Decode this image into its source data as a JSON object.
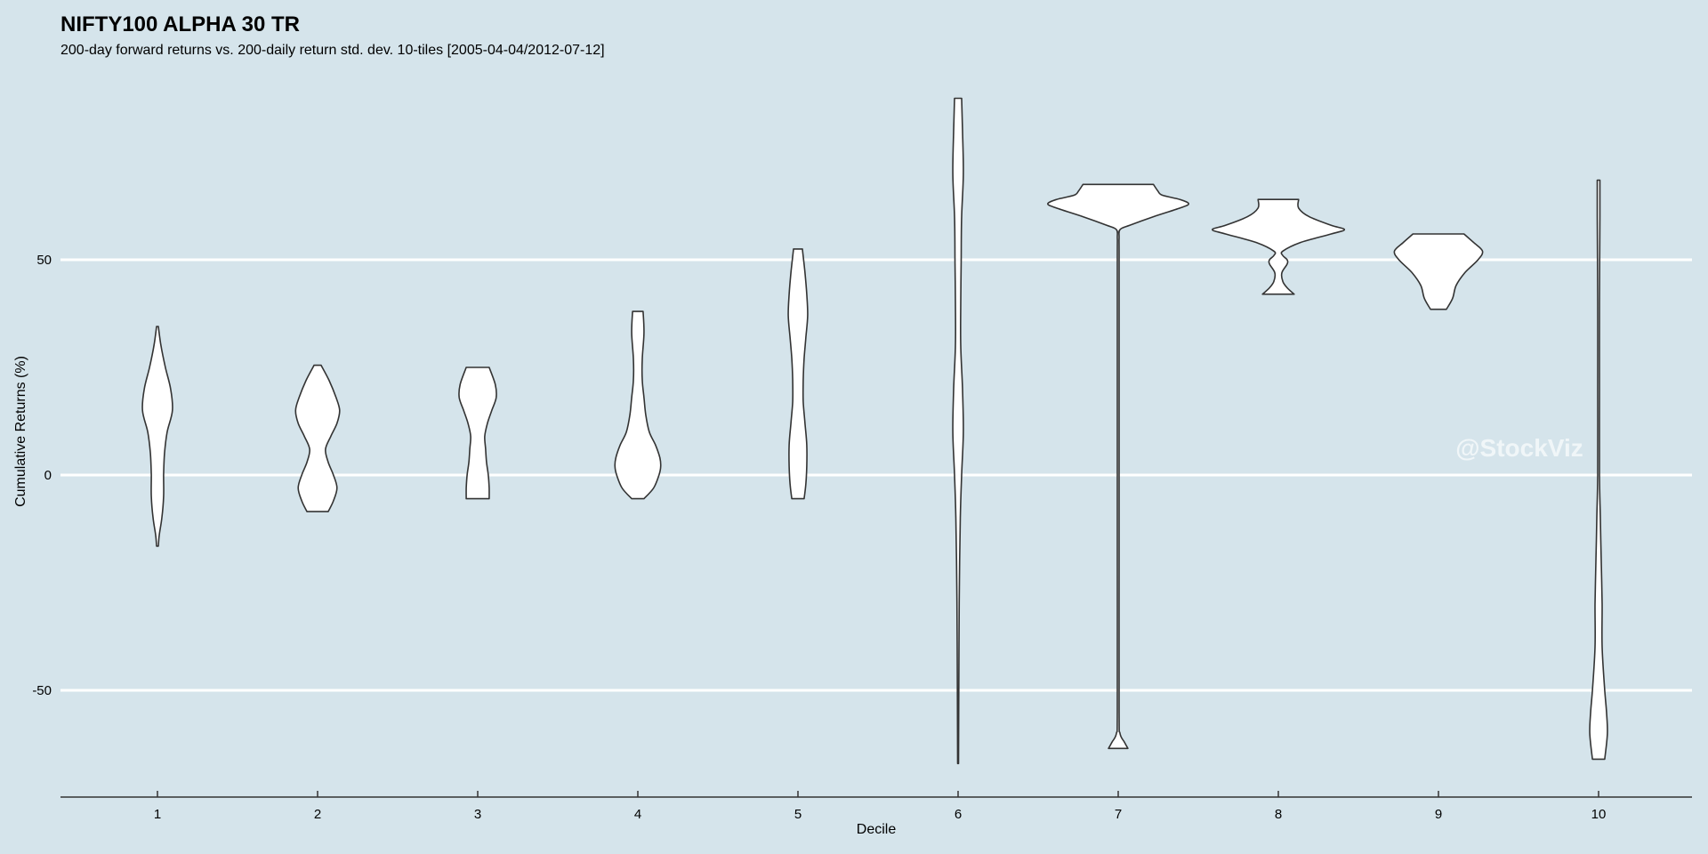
{
  "chart_data": {
    "type": "violin",
    "title": "NIFTY100 ALPHA 30 TR",
    "subtitle": "200-day forward returns vs. 200-daily return std. dev. 10-tiles [2005-04-04/2012-07-12]",
    "xlabel": "Decile",
    "ylabel": "Cumulative Returns (%)",
    "watermark": "@StockViz",
    "categories": [
      "1",
      "2",
      "3",
      "4",
      "5",
      "6",
      "7",
      "8",
      "9",
      "10"
    ],
    "y_ticks": [
      "-50",
      "0",
      "50"
    ],
    "y_tick_values": [
      -50,
      0,
      50
    ],
    "ylim": [
      -75,
      88
    ],
    "grid": true,
    "background_color": "#d5e4eb",
    "violins": [
      {
        "decile": "1",
        "min": -16.5,
        "max": 34.5,
        "profile": [
          [
            -16.5,
            1
          ],
          [
            -14,
            2
          ],
          [
            -10,
            5
          ],
          [
            -5,
            7
          ],
          [
            0,
            7
          ],
          [
            5,
            8
          ],
          [
            10,
            11
          ],
          [
            15,
            17
          ],
          [
            20,
            15
          ],
          [
            25,
            9
          ],
          [
            30,
            4
          ],
          [
            34.5,
            1
          ]
        ]
      },
      {
        "decile": "2",
        "min": -8.5,
        "max": 25.5,
        "profile": [
          [
            -8.5,
            12
          ],
          [
            -6,
            18
          ],
          [
            -3,
            22
          ],
          [
            0,
            18
          ],
          [
            3,
            12
          ],
          [
            6,
            9
          ],
          [
            9,
            15
          ],
          [
            12,
            22
          ],
          [
            15,
            25
          ],
          [
            18,
            21
          ],
          [
            22,
            13
          ],
          [
            25.5,
            4
          ]
        ]
      },
      {
        "decile": "3",
        "min": -5.5,
        "max": 25,
        "profile": [
          [
            -5.5,
            13
          ],
          [
            -3,
            13
          ],
          [
            0,
            12
          ],
          [
            3,
            10
          ],
          [
            6,
            9
          ],
          [
            9,
            8
          ],
          [
            12,
            11
          ],
          [
            15,
            16
          ],
          [
            18,
            21
          ],
          [
            21,
            20
          ],
          [
            25,
            13
          ]
        ]
      },
      {
        "decile": "4",
        "min": -5.5,
        "max": 38,
        "profile": [
          [
            -5.5,
            7
          ],
          [
            -3,
            18
          ],
          [
            0,
            24
          ],
          [
            2,
            26
          ],
          [
            4,
            25
          ],
          [
            7,
            20
          ],
          [
            10,
            13
          ],
          [
            14,
            9
          ],
          [
            18,
            7
          ],
          [
            22,
            5
          ],
          [
            27,
            5
          ],
          [
            33,
            7
          ],
          [
            38,
            6
          ]
        ]
      },
      {
        "decile": "5",
        "min": -5.5,
        "max": 52.5,
        "profile": [
          [
            -5.5,
            7
          ],
          [
            -2,
            9
          ],
          [
            2,
            10
          ],
          [
            7,
            10
          ],
          [
            12,
            8
          ],
          [
            17,
            6
          ],
          [
            22,
            6
          ],
          [
            27,
            7
          ],
          [
            32,
            9
          ],
          [
            37,
            11
          ],
          [
            42,
            10
          ],
          [
            47,
            8
          ],
          [
            52.5,
            5
          ]
        ]
      },
      {
        "decile": "6",
        "min": -67,
        "max": 87.5,
        "profile": [
          [
            -67,
            0.5
          ],
          [
            -40,
            1
          ],
          [
            -25,
            1.5
          ],
          [
            -10,
            2.5
          ],
          [
            0,
            4
          ],
          [
            10,
            6
          ],
          [
            20,
            5
          ],
          [
            30,
            3
          ],
          [
            40,
            3
          ],
          [
            50,
            3.5
          ],
          [
            60,
            4
          ],
          [
            70,
            6
          ],
          [
            80,
            5
          ],
          [
            87.5,
            4
          ]
        ]
      },
      {
        "decile": "7",
        "min": -63.5,
        "max": 67.5,
        "profile": [
          [
            -63.5,
            11
          ],
          [
            -62,
            7
          ],
          [
            -60,
            2
          ],
          [
            -55,
            1
          ],
          [
            -20,
            1
          ],
          [
            20,
            1
          ],
          [
            50,
            1
          ],
          [
            55,
            1
          ],
          [
            57,
            2
          ],
          [
            58,
            13
          ],
          [
            60,
            40
          ],
          [
            62,
            70
          ],
          [
            63,
            80
          ],
          [
            64,
            70
          ],
          [
            65,
            50
          ],
          [
            66,
            45
          ],
          [
            67.5,
            40
          ]
        ]
      },
      {
        "decile": "8",
        "min": 42,
        "max": 64,
        "profile": [
          [
            42,
            18
          ],
          [
            43.5,
            10
          ],
          [
            45,
            5
          ],
          [
            47,
            4
          ],
          [
            49,
            10
          ],
          [
            50,
            10
          ],
          [
            51,
            5
          ],
          [
            52,
            5
          ],
          [
            54,
            25
          ],
          [
            56,
            60
          ],
          [
            57,
            75
          ],
          [
            58,
            60
          ],
          [
            60,
            35
          ],
          [
            62,
            23
          ],
          [
            64,
            23
          ]
        ]
      },
      {
        "decile": "9",
        "min": 38.5,
        "max": 56,
        "profile": [
          [
            38.5,
            9
          ],
          [
            41,
            16
          ],
          [
            44,
            20
          ],
          [
            47,
            30
          ],
          [
            50,
            45
          ],
          [
            52,
            50
          ],
          [
            54,
            40
          ],
          [
            56,
            29
          ]
        ]
      },
      {
        "decile": "10",
        "min": -66,
        "max": 68.5,
        "profile": [
          [
            -66,
            7
          ],
          [
            -60,
            10
          ],
          [
            -55,
            9
          ],
          [
            -50,
            7
          ],
          [
            -40,
            4
          ],
          [
            -30,
            4
          ],
          [
            -20,
            3
          ],
          [
            -10,
            2
          ],
          [
            0,
            1
          ],
          [
            20,
            1
          ],
          [
            40,
            1
          ],
          [
            60,
            1.5
          ],
          [
            68.5,
            1.5
          ]
        ]
      }
    ]
  }
}
